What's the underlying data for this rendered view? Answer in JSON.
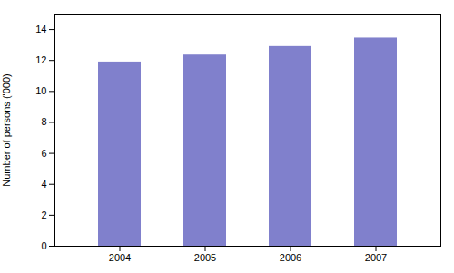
{
  "chart_data": {
    "type": "bar",
    "categories": [
      "2004",
      "2005",
      "2006",
      "2007"
    ],
    "values": [
      11.9,
      12.35,
      12.9,
      13.45
    ],
    "color": "#8080cc",
    "ylabel": "Number of persons ('000)",
    "ylim": [
      0,
      15
    ],
    "yticks": [
      0,
      2,
      4,
      6,
      8,
      10,
      12,
      14
    ],
    "grid": false
  }
}
